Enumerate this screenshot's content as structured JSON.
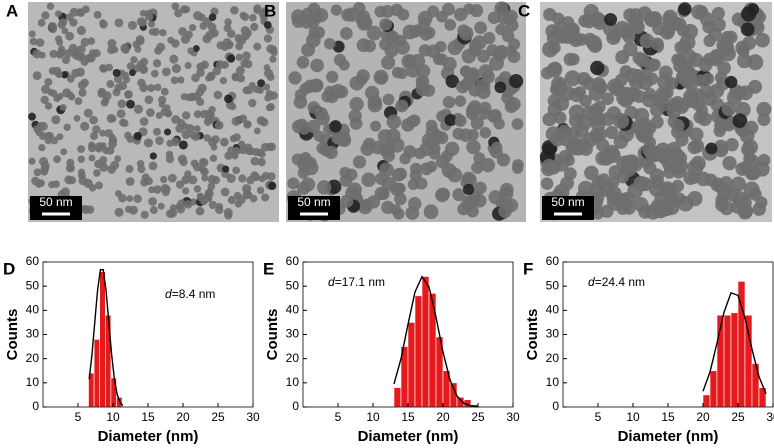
{
  "images": [
    {
      "label": "A",
      "scale_bar": "50 nm"
    },
    {
      "label": "B",
      "scale_bar": "50 nm"
    },
    {
      "label": "C",
      "scale_bar": "50 nm"
    }
  ],
  "chart_data": [
    {
      "type": "histogram",
      "panel_label": "D",
      "annotation": "d=8.4 nm",
      "bins": [
        6.5,
        7.3,
        8.1,
        8.9,
        9.7,
        10.5,
        11.3
      ],
      "values": [
        14,
        28,
        56,
        38,
        12,
        4
      ],
      "color": "#e41a1c",
      "fit": {
        "x": [
          6.6,
          7.0,
          7.4,
          7.8,
          8.2,
          8.6,
          9.0,
          9.4,
          9.8,
          10.2,
          10.6,
          11.0,
          11.4
        ],
        "values": [
          11.5,
          21.8,
          35.2,
          48.4,
          56.8,
          56.8,
          48.4,
          35.2,
          21.8,
          11.5,
          5.2,
          2.0,
          0.6
        ],
        "color": "#000000"
      },
      "xlabel": "Diameter (nm)",
      "ylabel": "Counts",
      "xlim": [
        0,
        30
      ],
      "xticks": [
        5,
        10,
        15,
        20,
        25,
        30
      ],
      "ylim": [
        0,
        60
      ],
      "yticks": [
        0,
        10,
        20,
        30,
        40,
        50,
        60
      ]
    },
    {
      "type": "histogram",
      "panel_label": "E",
      "annotation": "d=17.1 nm",
      "bins": [
        13,
        14,
        15,
        16,
        17,
        18,
        19,
        20,
        21,
        22,
        23,
        24,
        25
      ],
      "values": [
        8,
        25,
        35,
        46,
        54,
        47,
        29,
        15,
        10,
        4,
        3,
        1
      ],
      "color": "#e41a1c",
      "fit": {
        "x": [
          13,
          14,
          15,
          16,
          17,
          18,
          19,
          20,
          21,
          22,
          23,
          24,
          25
        ],
        "values": [
          9.5,
          20.0,
          34.2,
          47.6,
          53.9,
          49.7,
          37.2,
          22.7,
          11.2,
          4.5,
          1.5,
          0.4,
          0.1
        ],
        "color": "#000000"
      },
      "xlabel": "Diameter (nm)",
      "ylabel": "Counts",
      "xlim": [
        0,
        30
      ],
      "xticks": [
        5,
        10,
        15,
        20,
        25,
        30
      ],
      "ylim": [
        0,
        60
      ],
      "yticks": [
        0,
        10,
        20,
        30,
        40,
        50,
        60
      ]
    },
    {
      "type": "histogram",
      "panel_label": "F",
      "annotation": "d=24.4 nm",
      "bins": [
        20,
        21,
        22,
        23,
        24,
        25,
        26,
        27,
        28,
        29
      ],
      "values": [
        5,
        15,
        38,
        38,
        39,
        52,
        38,
        18,
        8
      ],
      "color": "#e41a1c",
      "fit": {
        "x": [
          20,
          21,
          22,
          23,
          24,
          25,
          26,
          27,
          28,
          29
        ],
        "values": [
          6.5,
          14.5,
          26.5,
          39.2,
          47.2,
          46.2,
          36.9,
          23.9,
          12.6,
          5.4
        ],
        "color": "#000000"
      },
      "xlabel": "Diameter (nm)",
      "ylabel": "Counts",
      "xlim": [
        0,
        30
      ],
      "xticks": [
        5,
        10,
        15,
        20,
        25,
        30
      ],
      "ylim": [
        0,
        60
      ],
      "yticks": [
        0,
        10,
        20,
        30,
        40,
        50,
        60
      ]
    }
  ]
}
